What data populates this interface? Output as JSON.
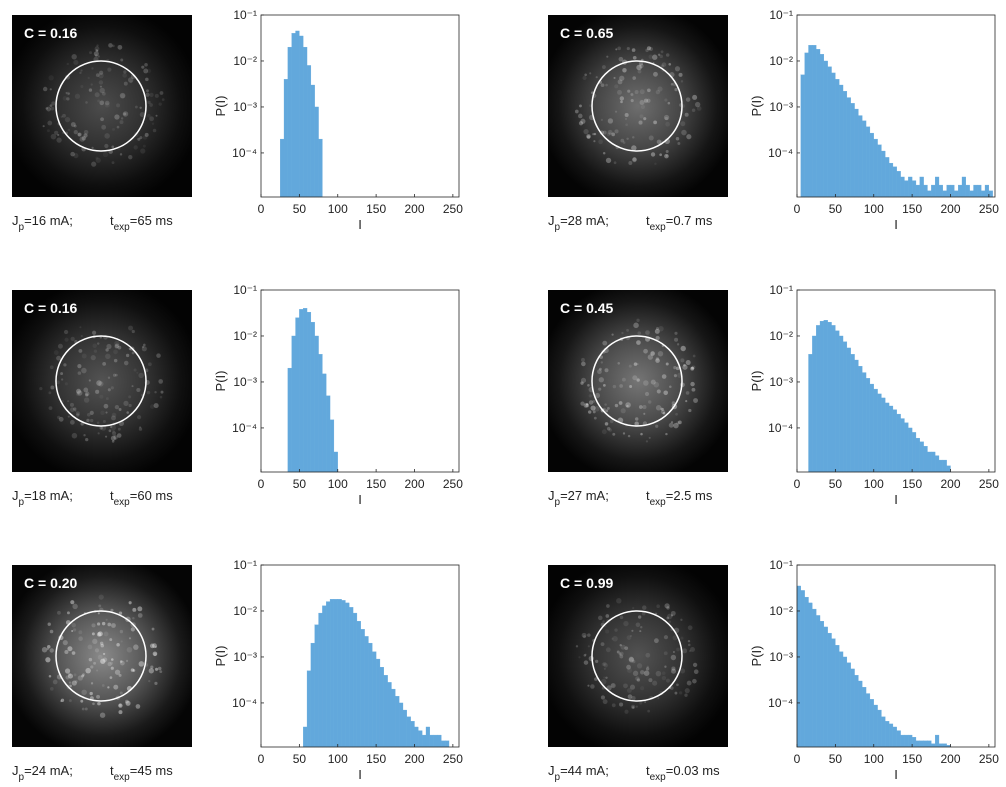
{
  "chart_data": [
    {
      "type": "histogram",
      "image_label": "C = 0.16",
      "caption": [
        "J",
        "p",
        "=16 mA;",
        "t",
        "exp",
        "=65 ms"
      ],
      "xlabel": "I",
      "ylabel": "P(I)",
      "color": "#62a8dc",
      "log_y": true,
      "xlim": [
        0,
        258
      ],
      "xticks": [
        0,
        50,
        100,
        150,
        200,
        250
      ],
      "ylim": [
        1.1e-05,
        0.1
      ],
      "yticks": [
        {
          "value": 0.1,
          "label": "10⁻¹"
        },
        {
          "value": 0.01,
          "label": "10⁻²"
        },
        {
          "value": 0.001,
          "label": "10⁻³"
        },
        {
          "value": 0.0001,
          "label": "10⁻⁴"
        }
      ],
      "bins": [
        0,
        5,
        10,
        15,
        20,
        25,
        30,
        35,
        40,
        45,
        50,
        55,
        60,
        65,
        70,
        75,
        80,
        85,
        90,
        95,
        100,
        105,
        110,
        115,
        120,
        125,
        130,
        135,
        140,
        145,
        150,
        155,
        160,
        165,
        170,
        175,
        180,
        185,
        190,
        195,
        200,
        205,
        210,
        215,
        220,
        225,
        230,
        235,
        240,
        245,
        250,
        255
      ],
      "values": [
        0,
        0,
        0,
        0,
        0,
        0.0002,
        0.004,
        0.02,
        0.04,
        0.045,
        0.035,
        0.02,
        0.008,
        0.003,
        0.001,
        0.0002,
        0,
        0,
        0,
        0,
        0,
        0,
        0,
        0,
        0,
        0,
        0,
        0,
        0,
        0,
        0,
        0,
        0,
        0,
        0,
        0,
        0,
        0,
        0,
        0,
        0,
        0,
        0,
        0,
        0,
        0,
        0,
        0,
        0,
        0,
        0
      ]
    },
    {
      "type": "histogram",
      "image_label": "C = 0.65",
      "caption": [
        "J",
        "p",
        "=28 mA;",
        "t",
        "exp",
        "=0.7 ms"
      ],
      "xlabel": "I",
      "ylabel": "P(I)",
      "color": "#62a8dc",
      "log_y": true,
      "xlim": [
        0,
        258
      ],
      "xticks": [
        0,
        50,
        100,
        150,
        200,
        250
      ],
      "ylim": [
        1.1e-05,
        0.1
      ],
      "yticks": [
        {
          "value": 0.1,
          "label": "10⁻¹"
        },
        {
          "value": 0.01,
          "label": "10⁻²"
        },
        {
          "value": 0.001,
          "label": "10⁻³"
        },
        {
          "value": 0.0001,
          "label": "10⁻⁴"
        }
      ],
      "bins": [
        0,
        5,
        10,
        15,
        20,
        25,
        30,
        35,
        40,
        45,
        50,
        55,
        60,
        65,
        70,
        75,
        80,
        85,
        90,
        95,
        100,
        105,
        110,
        115,
        120,
        125,
        130,
        135,
        140,
        145,
        150,
        155,
        160,
        165,
        170,
        175,
        180,
        185,
        190,
        195,
        200,
        205,
        210,
        215,
        220,
        225,
        230,
        235,
        240,
        245,
        250,
        255
      ],
      "values": [
        0,
        0.005,
        0.015,
        0.022,
        0.022,
        0.018,
        0.014,
        0.01,
        0.0075,
        0.0055,
        0.004,
        0.003,
        0.0022,
        0.0016,
        0.0012,
        0.0009,
        0.00065,
        0.0005,
        0.00037,
        0.00027,
        0.0002,
        0.00015,
        0.00011,
        8e-05,
        6e-05,
        5e-05,
        4e-05,
        3e-05,
        2.5e-05,
        3e-05,
        2.5e-05,
        2e-05,
        3e-05,
        2e-05,
        1.5e-05,
        2e-05,
        3e-05,
        2e-05,
        1.5e-05,
        2e-05,
        2e-05,
        1.5e-05,
        2e-05,
        3e-05,
        2e-05,
        1.5e-05,
        2e-05,
        2e-05,
        1.5e-05,
        2e-05,
        1.5e-05
      ]
    },
    {
      "type": "histogram",
      "image_label": "C = 0.16",
      "caption": [
        "J",
        "p",
        "=18 mA;",
        "t",
        "exp",
        "=60 ms"
      ],
      "xlabel": "I",
      "ylabel": "P(I)",
      "color": "#62a8dc",
      "log_y": true,
      "xlim": [
        0,
        258
      ],
      "xticks": [
        0,
        50,
        100,
        150,
        200,
        250
      ],
      "ylim": [
        1.1e-05,
        0.1
      ],
      "yticks": [
        {
          "value": 0.1,
          "label": "10⁻¹"
        },
        {
          "value": 0.01,
          "label": "10⁻²"
        },
        {
          "value": 0.001,
          "label": "10⁻³"
        },
        {
          "value": 0.0001,
          "label": "10⁻⁴"
        }
      ],
      "bins": [
        0,
        5,
        10,
        15,
        20,
        25,
        30,
        35,
        40,
        45,
        50,
        55,
        60,
        65,
        70,
        75,
        80,
        85,
        90,
        95,
        100,
        105,
        110,
        115,
        120,
        125,
        130,
        135,
        140,
        145,
        150,
        155,
        160,
        165,
        170,
        175,
        180,
        185,
        190,
        195,
        200,
        205,
        210,
        215,
        220,
        225,
        230,
        235,
        240,
        245,
        250,
        255
      ],
      "values": [
        0,
        0,
        0,
        0,
        0,
        0,
        0,
        0.002,
        0.01,
        0.025,
        0.038,
        0.04,
        0.033,
        0.02,
        0.01,
        0.004,
        0.0015,
        0.0005,
        0.00015,
        3e-05,
        0,
        0,
        0,
        0,
        0,
        0,
        0,
        0,
        0,
        0,
        0,
        0,
        0,
        0,
        0,
        0,
        0,
        0,
        0,
        0,
        0,
        0,
        0,
        0,
        0,
        0,
        0,
        0,
        0,
        0,
        0
      ]
    },
    {
      "type": "histogram",
      "image_label": "C = 0.45",
      "caption": [
        "J",
        "p",
        "=27 mA;",
        "t",
        "exp",
        "=2.5 ms"
      ],
      "xlabel": "I",
      "ylabel": "P(I)",
      "color": "#62a8dc",
      "log_y": true,
      "xlim": [
        0,
        258
      ],
      "xticks": [
        0,
        50,
        100,
        150,
        200,
        250
      ],
      "ylim": [
        1.1e-05,
        0.1
      ],
      "yticks": [
        {
          "value": 0.1,
          "label": "10⁻¹"
        },
        {
          "value": 0.01,
          "label": "10⁻²"
        },
        {
          "value": 0.001,
          "label": "10⁻³"
        },
        {
          "value": 0.0001,
          "label": "10⁻⁴"
        }
      ],
      "bins": [
        0,
        5,
        10,
        15,
        20,
        25,
        30,
        35,
        40,
        45,
        50,
        55,
        60,
        65,
        70,
        75,
        80,
        85,
        90,
        95,
        100,
        105,
        110,
        115,
        120,
        125,
        130,
        135,
        140,
        145,
        150,
        155,
        160,
        165,
        170,
        175,
        180,
        185,
        190,
        195,
        200,
        205,
        210,
        215,
        220,
        225,
        230,
        235,
        240,
        245,
        250,
        255
      ],
      "values": [
        0,
        0,
        0,
        0.004,
        0.01,
        0.017,
        0.021,
        0.022,
        0.02,
        0.017,
        0.013,
        0.01,
        0.0075,
        0.0055,
        0.004,
        0.003,
        0.0022,
        0.0016,
        0.0012,
        0.0009,
        0.0007,
        0.00055,
        0.00045,
        0.00035,
        0.0003,
        0.00025,
        0.0002,
        0.00016,
        0.00013,
        0.0001,
        8e-05,
        6e-05,
        5e-05,
        4e-05,
        3e-05,
        3e-05,
        2.5e-05,
        2e-05,
        2e-05,
        1.5e-05,
        0,
        0,
        0,
        0,
        0,
        0,
        0,
        0,
        0,
        0,
        0
      ]
    },
    {
      "type": "histogram",
      "image_label": "C = 0.20",
      "caption": [
        "J",
        "p",
        "=24 mA;",
        "t",
        "exp",
        "=45 ms"
      ],
      "xlabel": "I",
      "ylabel": "P(I)",
      "color": "#62a8dc",
      "log_y": true,
      "xlim": [
        0,
        258
      ],
      "xticks": [
        0,
        50,
        100,
        150,
        200,
        250
      ],
      "ylim": [
        1.1e-05,
        0.1
      ],
      "yticks": [
        {
          "value": 0.1,
          "label": "10⁻¹"
        },
        {
          "value": 0.01,
          "label": "10⁻²"
        },
        {
          "value": 0.001,
          "label": "10⁻³"
        },
        {
          "value": 0.0001,
          "label": "10⁻⁴"
        }
      ],
      "bins": [
        0,
        5,
        10,
        15,
        20,
        25,
        30,
        35,
        40,
        45,
        50,
        55,
        60,
        65,
        70,
        75,
        80,
        85,
        90,
        95,
        100,
        105,
        110,
        115,
        120,
        125,
        130,
        135,
        140,
        145,
        150,
        155,
        160,
        165,
        170,
        175,
        180,
        185,
        190,
        195,
        200,
        205,
        210,
        215,
        220,
        225,
        230,
        235,
        240,
        245,
        250,
        255
      ],
      "values": [
        0,
        0,
        0,
        0,
        0,
        0,
        0,
        0,
        0,
        0,
        0,
        3e-05,
        0.0005,
        0.002,
        0.005,
        0.009,
        0.013,
        0.016,
        0.018,
        0.018,
        0.018,
        0.017,
        0.015,
        0.012,
        0.009,
        0.006,
        0.004,
        0.0028,
        0.002,
        0.0013,
        0.0009,
        0.0006,
        0.0004,
        0.00028,
        0.0002,
        0.00014,
        0.0001,
        7e-05,
        5e-05,
        4e-05,
        3e-05,
        2.5e-05,
        2e-05,
        3e-05,
        2e-05,
        2e-05,
        2e-05,
        1.5e-05,
        1.5e-05,
        0,
        0
      ]
    },
    {
      "type": "histogram",
      "image_label": "C = 0.99",
      "caption": [
        "J",
        "p",
        "=44 mA;",
        "t",
        "exp",
        "=0.03 ms"
      ],
      "xlabel": "I",
      "ylabel": "P(I)",
      "color": "#62a8dc",
      "log_y": true,
      "xlim": [
        0,
        258
      ],
      "xticks": [
        0,
        50,
        100,
        150,
        200,
        250
      ],
      "ylim": [
        1.1e-05,
        0.1
      ],
      "yticks": [
        {
          "value": 0.1,
          "label": "10⁻¹"
        },
        {
          "value": 0.01,
          "label": "10⁻²"
        },
        {
          "value": 0.001,
          "label": "10⁻³"
        },
        {
          "value": 0.0001,
          "label": "10⁻⁴"
        }
      ],
      "bins": [
        0,
        5,
        10,
        15,
        20,
        25,
        30,
        35,
        40,
        45,
        50,
        55,
        60,
        65,
        70,
        75,
        80,
        85,
        90,
        95,
        100,
        105,
        110,
        115,
        120,
        125,
        130,
        135,
        140,
        145,
        150,
        155,
        160,
        165,
        170,
        175,
        180,
        185,
        190,
        195,
        200,
        205,
        210,
        215,
        220,
        225,
        230,
        235,
        240,
        245,
        250,
        255
      ],
      "values": [
        0.035,
        0.028,
        0.02,
        0.015,
        0.011,
        0.008,
        0.006,
        0.0045,
        0.0033,
        0.0025,
        0.0018,
        0.0013,
        0.001,
        0.00075,
        0.00055,
        0.0004,
        0.0003,
        0.00022,
        0.00016,
        0.00012,
        9e-05,
        7e-05,
        5e-05,
        4e-05,
        3.5e-05,
        3e-05,
        2.5e-05,
        2e-05,
        2e-05,
        2e-05,
        1.8e-05,
        1.5e-05,
        1.5e-05,
        1.5e-05,
        1.5e-05,
        1.3e-05,
        2e-05,
        1.3e-05,
        1.3e-05,
        1.2e-05,
        0,
        0,
        0,
        0,
        0,
        0,
        0,
        0,
        0,
        0,
        0
      ]
    }
  ]
}
